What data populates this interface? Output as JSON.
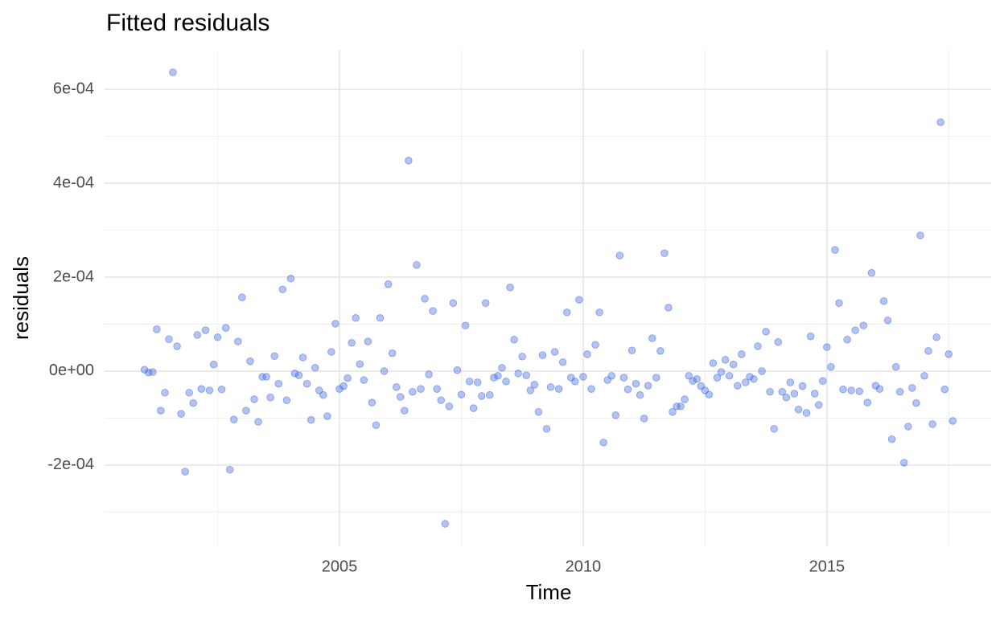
{
  "chart_data": {
    "type": "scatter",
    "title": "Fitted residuals",
    "x_label": "Time",
    "y_label": "residuals",
    "color": "#4169e1",
    "alpha": 0.4,
    "grid": true,
    "xlim": [
      2000.18,
      2018.37
    ],
    "ylim": [
      -0.000373,
      0.000684
    ],
    "xticks": [
      2005,
      2010,
      2015
    ],
    "yticks": [
      {
        "value": -0.0002,
        "label": "-2e-04"
      },
      {
        "value": 0,
        "label": "0e+00"
      },
      {
        "value": 0.0002,
        "label": "2e-04"
      },
      {
        "value": 0.0004,
        "label": "4e-04"
      },
      {
        "value": 0.0006,
        "label": "6e-04"
      }
    ],
    "x_minor_grid": [
      2002.5,
      2007.5,
      2012.5,
      2017.5
    ],
    "y_minor_grid": [
      -0.0003,
      -0.0001,
      0.0001,
      0.0003,
      0.0005
    ],
    "x": [
      2001,
      2001.083,
      2001.167,
      2001.25,
      2001.333,
      2001.417,
      2001.5,
      2001.583,
      2001.667,
      2001.75,
      2001.833,
      2001.917,
      2002,
      2002.083,
      2002.167,
      2002.25,
      2002.333,
      2002.417,
      2002.5,
      2002.583,
      2002.667,
      2002.75,
      2002.833,
      2002.917,
      2003,
      2003.083,
      2003.167,
      2003.25,
      2003.333,
      2003.417,
      2003.5,
      2003.583,
      2003.667,
      2003.75,
      2003.833,
      2003.917,
      2004,
      2004.083,
      2004.167,
      2004.25,
      2004.333,
      2004.417,
      2004.5,
      2004.583,
      2004.667,
      2004.75,
      2004.833,
      2004.917,
      2005,
      2005.083,
      2005.167,
      2005.25,
      2005.333,
      2005.417,
      2005.5,
      2005.583,
      2005.667,
      2005.75,
      2005.833,
      2005.917,
      2006,
      2006.083,
      2006.167,
      2006.25,
      2006.333,
      2006.417,
      2006.5,
      2006.583,
      2006.667,
      2006.75,
      2006.833,
      2006.917,
      2007,
      2007.083,
      2007.167,
      2007.25,
      2007.333,
      2007.417,
      2007.5,
      2007.583,
      2007.667,
      2007.75,
      2007.833,
      2007.917,
      2008,
      2008.083,
      2008.167,
      2008.25,
      2008.333,
      2008.417,
      2008.5,
      2008.583,
      2008.667,
      2008.75,
      2008.833,
      2008.917,
      2009,
      2009.083,
      2009.167,
      2009.25,
      2009.333,
      2009.417,
      2009.5,
      2009.583,
      2009.667,
      2009.75,
      2009.833,
      2009.917,
      2010,
      2010.083,
      2010.167,
      2010.25,
      2010.333,
      2010.417,
      2010.5,
      2010.583,
      2010.667,
      2010.75,
      2010.833,
      2010.917,
      2011,
      2011.083,
      2011.167,
      2011.25,
      2011.333,
      2011.417,
      2011.5,
      2011.583,
      2011.667,
      2011.75,
      2011.833,
      2011.917,
      2012,
      2012.083,
      2012.167,
      2012.25,
      2012.333,
      2012.417,
      2012.5,
      2012.583,
      2012.667,
      2012.75,
      2012.833,
      2012.917,
      2013,
      2013.083,
      2013.167,
      2013.25,
      2013.333,
      2013.417,
      2013.5,
      2013.583,
      2013.667,
      2013.75,
      2013.833,
      2013.917,
      2014,
      2014.083,
      2014.167,
      2014.25,
      2014.333,
      2014.417,
      2014.5,
      2014.583,
      2014.667,
      2014.75,
      2014.833,
      2014.917,
      2015,
      2015.083,
      2015.167,
      2015.25,
      2015.333,
      2015.417,
      2015.5,
      2015.583,
      2015.667,
      2015.75,
      2015.833,
      2015.917,
      2016,
      2016.083,
      2016.167,
      2016.25,
      2016.333,
      2016.417,
      2016.5,
      2016.583,
      2016.667,
      2016.75,
      2016.833,
      2016.917,
      2017,
      2017.083,
      2017.167,
      2017.25,
      2017.333,
      2017.417,
      2017.5,
      2017.583
    ],
    "values": [
      3e-06,
      -3e-06,
      -2e-06,
      8.9e-05,
      -8.4e-05,
      -4.6e-05,
      6.8e-05,
      0.000636,
      5.3e-05,
      -9.1e-05,
      -0.000214,
      -4.6e-05,
      -6.8e-05,
      7.7e-05,
      -3.8e-05,
      8.7e-05,
      -4.1e-05,
      1.4e-05,
      7.2e-05,
      -3.9e-05,
      9.2e-05,
      -0.00021,
      -0.000103,
      6.3e-05,
      0.000157,
      -8.4e-05,
      2.1e-05,
      -6e-05,
      -0.000108,
      -1.2e-05,
      -1.2e-05,
      -5.6e-05,
      3.2e-05,
      -2.7e-05,
      0.000174,
      -6.2e-05,
      0.000197,
      -5e-06,
      -9e-06,
      2.9e-05,
      -2.7e-05,
      -0.000104,
      7e-06,
      -4.1e-05,
      -5.1e-05,
      -9.6e-05,
      4.1e-05,
      0.000101,
      -3.8e-05,
      -3.2e-05,
      -1.5e-05,
      6e-05,
      0.000113,
      1.5e-05,
      -1.9e-05,
      6.3e-05,
      -6.7e-05,
      -0.000115,
      0.000113,
      0,
      0.000185,
      3.8e-05,
      -3.4e-05,
      -5.5e-05,
      -8.4e-05,
      0.000448,
      -4.4e-05,
      0.000226,
      -3.8e-05,
      0.000154,
      -7e-06,
      0.000128,
      -3.8e-05,
      -6.2e-05,
      -0.000325,
      -7.5e-05,
      0.000145,
      2e-06,
      -5e-05,
      9.7e-05,
      -2.2e-05,
      -7.9e-05,
      -2.4e-05,
      -5.3e-05,
      0.000145,
      -5.1e-05,
      -1.4e-05,
      -1e-05,
      7e-06,
      -2.2e-05,
      0.000178,
      6.7e-05,
      -5e-06,
      3.1e-05,
      -9e-06,
      -4.1e-05,
      -2.9e-05,
      -8.7e-05,
      3.4e-05,
      -0.000123,
      -3.4e-05,
      4.1e-05,
      -3.8e-05,
      1.9e-05,
      0.000125,
      -1.4e-05,
      -2.2e-05,
      0.000152,
      -1.2e-05,
      3.6e-05,
      -3.8e-05,
      5.6e-05,
      0.000125,
      -0.000152,
      -1.9e-05,
      -1e-05,
      -9.4e-05,
      0.000246,
      -1.4e-05,
      -3.9e-05,
      4.4e-05,
      -2.7e-05,
      -5.1e-05,
      -0.000101,
      -3.1e-05,
      7e-05,
      -1.4e-05,
      4.3e-05,
      0.000251,
      0.000135,
      -8.7e-05,
      -7.5e-05,
      -7.5e-05,
      -6e-05,
      -1e-05,
      -2.1e-05,
      -1.7e-05,
      -3.2e-05,
      -4.1e-05,
      -5e-05,
      1.7e-05,
      -1.4e-05,
      -2e-06,
      2.4e-05,
      -1e-05,
      1.4e-05,
      -3.1e-05,
      3.6e-05,
      -2.4e-05,
      -1.2e-05,
      -1.7e-05,
      5.3e-05,
      0,
      8.4e-05,
      -4.4e-05,
      -0.000123,
      6.2e-05,
      -4.4e-05,
      -5.6e-05,
      -2.4e-05,
      -4.8e-05,
      -8.2e-05,
      -3.2e-05,
      -8.9e-05,
      7.4e-05,
      -4.8e-05,
      -7.2e-05,
      -2.1e-05,
      5.1e-05,
      9e-06,
      0.000258,
      0.000145,
      -3.9e-05,
      6.7e-05,
      -4.1e-05,
      8.7e-05,
      -4.3e-05,
      9.7e-05,
      -6.7e-05,
      0.000209,
      -3.1e-05,
      -3.8e-05,
      0.000149,
      0.000108,
      -0.000145,
      9e-06,
      -4.4e-05,
      -0.000195,
      -0.000118,
      -3.6e-05,
      -6.8e-05,
      0.000289,
      -1e-05,
      4.3e-05,
      -0.000113,
      7.2e-05,
      0.00053,
      -3.9e-05,
      3.6e-05,
      -0.000106
    ]
  }
}
